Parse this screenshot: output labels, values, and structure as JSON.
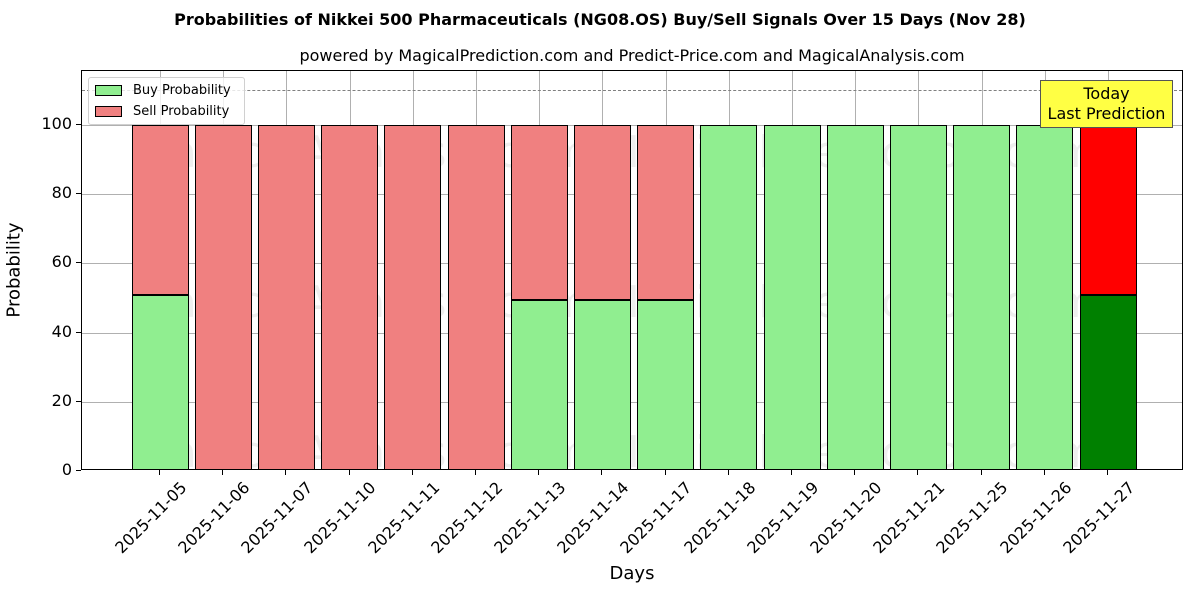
{
  "chart_data": {
    "type": "bar",
    "stacked": true,
    "title": "Probabilities of Nikkei 500 Pharmaceuticals (NG08.OS) Buy/Sell Signals Over 15 Days (Nov 28)",
    "subtitle": "powered by MagicalPrediction.com and Predict-Price.com and MagicalAnalysis.com",
    "xlabel": "Days",
    "ylabel": "Probability",
    "ylim": [
      0,
      115.6
    ],
    "yticks": [
      0,
      20,
      40,
      60,
      80,
      100
    ],
    "ytick_labels": [
      "0",
      "20",
      "40",
      "60",
      "80",
      "100"
    ],
    "grid": true,
    "legend_position": "upper left",
    "reference_line": {
      "y": 110,
      "style": "dashed",
      "color": "#808080"
    },
    "categories": [
      "2025-11-05",
      "2025-11-06",
      "2025-11-07",
      "2025-11-10",
      "2025-11-11",
      "2025-11-12",
      "2025-11-13",
      "2025-11-14",
      "2025-11-17",
      "2025-11-18",
      "2025-11-19",
      "2025-11-20",
      "2025-11-21",
      "2025-11-25",
      "2025-11-26",
      "2025-11-27"
    ],
    "series": [
      {
        "name": "Buy Probability",
        "color": "#90ee90",
        "highlight_color": "#008000",
        "values": [
          50.9,
          0,
          0,
          0,
          0,
          0,
          49.4,
          49.4,
          49.4,
          100,
          100,
          100,
          100,
          100,
          100,
          50.9
        ]
      },
      {
        "name": "Sell Probability",
        "color": "#f08080",
        "highlight_color": "#ff0000",
        "values": [
          49.1,
          100,
          100,
          100,
          100,
          100,
          50.6,
          50.6,
          50.6,
          0,
          0,
          0,
          0,
          0,
          0,
          49.1
        ]
      }
    ],
    "highlight_index": 15,
    "annotation": {
      "line1": "Today",
      "line2": "Last Prediction",
      "background": "#ffff44"
    },
    "watermarks": [
      "MagicalAnalysis.com",
      "MagicalPrediction.com"
    ]
  }
}
